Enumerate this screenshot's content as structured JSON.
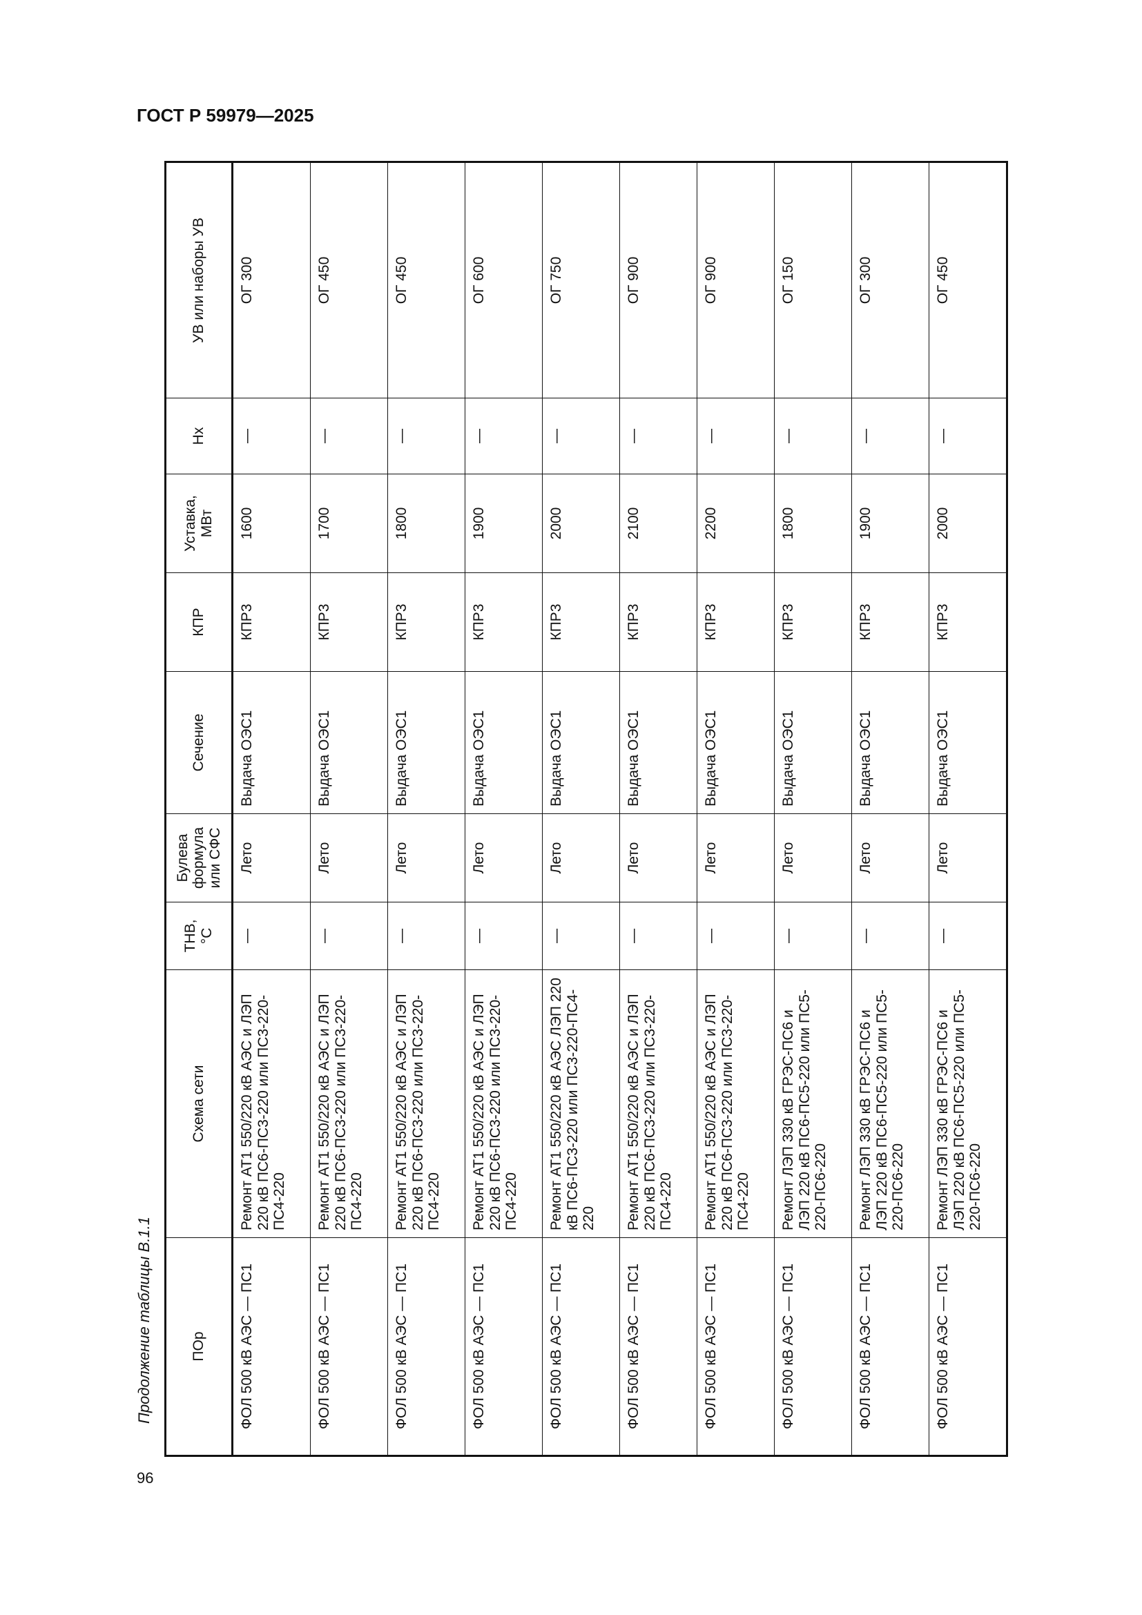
{
  "header": {
    "title": "ГОСТ Р 59979—2025"
  },
  "caption": "Продолжение таблицы В.1.1",
  "page_number": "96",
  "table": {
    "columns": [
      "ПОр",
      "Схема сети",
      "ТНВ, °С",
      "Булева формула или СФС",
      "Сечение",
      "КПР",
      "Уставка, МВт",
      "Нх",
      "УВ или наборы УВ"
    ],
    "rows": [
      [
        "ФОЛ 500 кВ АЭС — ПС1",
        "Ремонт АТ1 550/220 кВ АЭС и ЛЭП 220 кВ ПС6-ПС3-220 или ПС3-220-ПС4-220",
        "—",
        "Лето",
        "Выдача ОЭС1",
        "КПР3",
        "1600",
        "—",
        "ОГ 300"
      ],
      [
        "ФОЛ 500 кВ АЭС — ПС1",
        "Ремонт АТ1 550/220 кВ АЭС и ЛЭП 220 кВ ПС6-ПС3-220 или ПС3-220-ПС4-220",
        "—",
        "Лето",
        "Выдача ОЭС1",
        "КПР3",
        "1700",
        "—",
        "ОГ 450"
      ],
      [
        "ФОЛ 500 кВ АЭС — ПС1",
        "Ремонт АТ1 550/220 кВ АЭС и ЛЭП 220 кВ ПС6-ПС3-220 или ПС3-220-ПС4-220",
        "—",
        "Лето",
        "Выдача ОЭС1",
        "КПР3",
        "1800",
        "—",
        "ОГ 450"
      ],
      [
        "ФОЛ 500 кВ АЭС — ПС1",
        "Ремонт АТ1 550/220 кВ АЭС и ЛЭП 220 кВ ПС6-ПС3-220 или ПС3-220-ПС4-220",
        "—",
        "Лето",
        "Выдача ОЭС1",
        "КПР3",
        "1900",
        "—",
        "ОГ 600"
      ],
      [
        "ФОЛ 500 кВ АЭС — ПС1",
        "Ремонт АТ1 550/220 кВ АЭС ЛЭП 220 кВ ПС6-ПС3-220 или ПС3-220-ПС4-220",
        "—",
        "Лето",
        "Выдача ОЭС1",
        "КПР3",
        "2000",
        "—",
        "ОГ 750"
      ],
      [
        "ФОЛ 500 кВ АЭС — ПС1",
        "Ремонт АТ1 550/220 кВ АЭС и ЛЭП 220 кВ ПС6-ПС3-220 или ПС3-220-ПС4-220",
        "—",
        "Лето",
        "Выдача ОЭС1",
        "КПР3",
        "2100",
        "—",
        "ОГ 900"
      ],
      [
        "ФОЛ 500 кВ АЭС — ПС1",
        "Ремонт АТ1 550/220 кВ АЭС и ЛЭП 220 кВ ПС6-ПС3-220 или ПС3-220-ПС4-220",
        "—",
        "Лето",
        "Выдача ОЭС1",
        "КПР3",
        "2200",
        "—",
        "ОГ 900"
      ],
      [
        "ФОЛ 500 кВ АЭС — ПС1",
        "Ремонт ЛЭП 330 кВ ГРЭС-ПС6 и ЛЭП 220 кВ ПС6-ПС5-220 или ПС5-220-ПС6-220",
        "—",
        "Лето",
        "Выдача ОЭС1",
        "КПР3",
        "1800",
        "—",
        "ОГ 150"
      ],
      [
        "ФОЛ 500 кВ АЭС — ПС1",
        "Ремонт ЛЭП 330 кВ ГРЭС-ПС6 и ЛЭП 220 кВ ПС6-ПС5-220 или ПС5-220-ПС6-220",
        "—",
        "Лето",
        "Выдача ОЭС1",
        "КПР3",
        "1900",
        "—",
        "ОГ 300"
      ],
      [
        "ФОЛ 500 кВ АЭС — ПС1",
        "Ремонт ЛЭП 330 кВ ГРЭС-ПС6 и ЛЭП 220 кВ ПС6-ПС5-220 или ПС5-220-ПС6-220",
        "—",
        "Лето",
        "Выдача ОЭС1",
        "КПР3",
        "2000",
        "—",
        "ОГ 450"
      ]
    ]
  }
}
